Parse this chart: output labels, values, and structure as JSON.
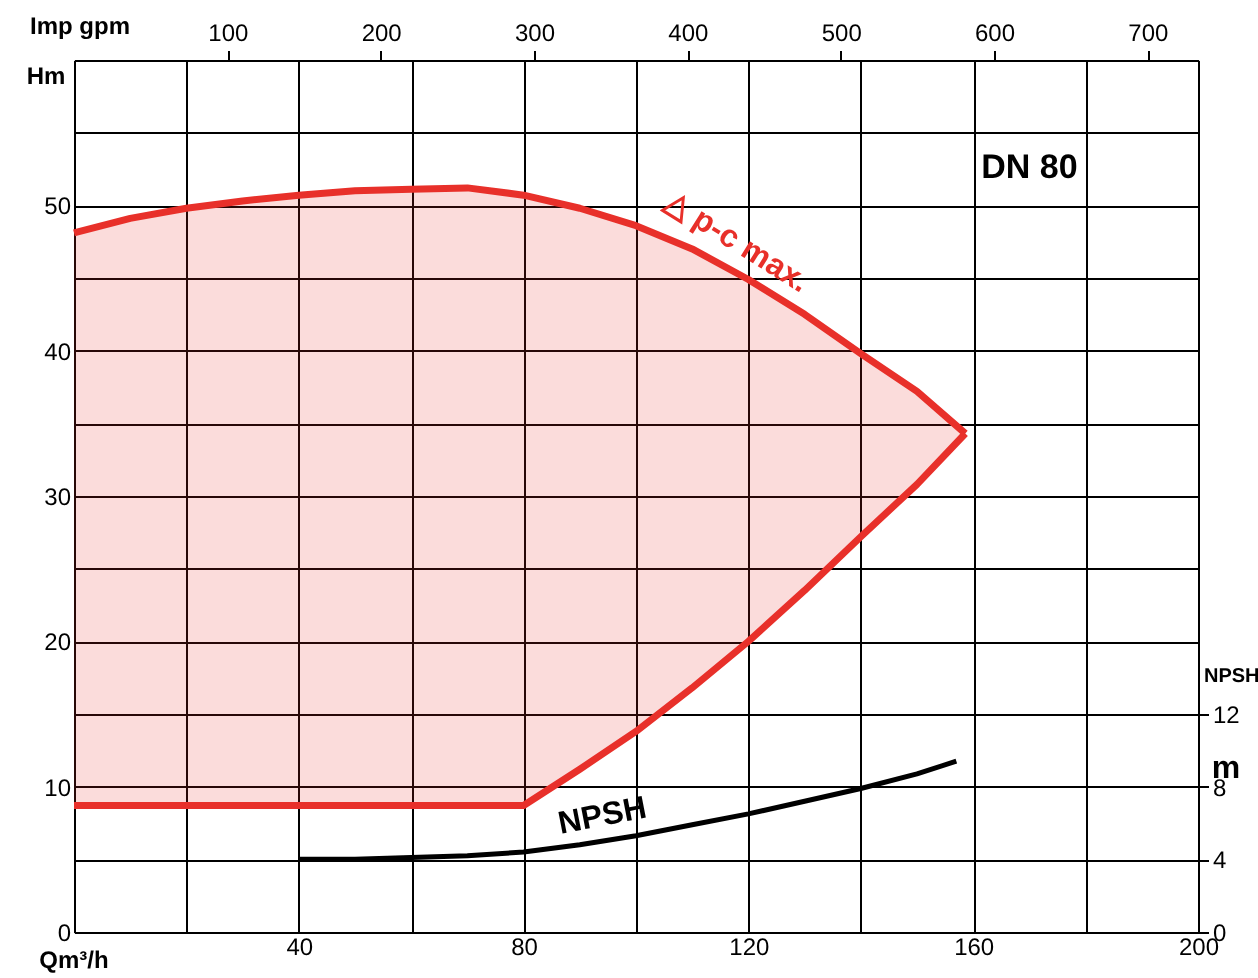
{
  "chart_data": {
    "type": "line",
    "title": "DN 80",
    "xlabel": "Qm³/h",
    "ylabel": "Hm",
    "y2label": "NPSH",
    "x2label": "Imp gpm",
    "xlim": [
      0,
      200
    ],
    "xticks": [
      {
        "value": 0,
        "label": null
      },
      {
        "value": 20,
        "label": null
      },
      40,
      {
        "value": 60,
        "label": null
      },
      80,
      {
        "value": 100,
        "label": null
      },
      120,
      {
        "value": 140,
        "label": null
      },
      160,
      {
        "value": 180,
        "label": null
      },
      200
    ],
    "ylim": [
      0,
      60
    ],
    "yticks": [
      0,
      {
        "value": 5,
        "label": null
      },
      10,
      {
        "value": 15,
        "label": null
      },
      20,
      {
        "value": 25,
        "label": null
      },
      30,
      {
        "value": 35,
        "label": null
      },
      40,
      {
        "value": 45,
        "label": null
      },
      50,
      {
        "value": 55,
        "label": null
      },
      {
        "value": 60,
        "label": null
      }
    ],
    "y2lim": [
      0,
      48
    ],
    "y2ticks": [
      0,
      4,
      8,
      12
    ],
    "x2lim": [
      0,
      733
    ],
    "x2ticks": [
      100,
      200,
      300,
      400,
      500,
      600,
      700
    ],
    "grid": true,
    "series": [
      {
        "color": "#e8302a",
        "x": [
          0,
          10,
          20,
          30,
          40,
          50,
          60,
          70,
          80,
          90,
          100,
          110,
          120,
          130,
          140,
          150,
          158.6
        ],
        "values": [
          48.1,
          49.1,
          49.8,
          50.3,
          50.7,
          51.0,
          51.1,
          51.2,
          50.7,
          49.8,
          48.6,
          47.0,
          44.9,
          42.5,
          39.8,
          37.2,
          34.3
        ],
        "lower": [
          8.7,
          8.7,
          8.7,
          8.7,
          8.7,
          8.7,
          8.7,
          8.7,
          8.7,
          11.2,
          13.8,
          16.8,
          20.0,
          23.5,
          27.2,
          30.8,
          34.3
        ],
        "upper": [
          48.1,
          49.1,
          49.8,
          50.3,
          50.7,
          51.0,
          51.1,
          51.2,
          50.7,
          49.8,
          48.6,
          47.0,
          44.9,
          42.5,
          39.8,
          37.2,
          34.3
        ]
      },
      {
        "color": "#e8302a",
        "x": [
          0,
          10,
          20,
          30,
          40,
          50,
          60,
          70,
          80,
          90,
          100,
          110,
          120,
          130,
          140,
          150,
          158.6
        ],
        "values": [
          8.7,
          8.7,
          8.7,
          8.7,
          8.7,
          8.7,
          8.7,
          8.7,
          8.7,
          11.2,
          13.8,
          16.8,
          20.0,
          23.5,
          27.2,
          30.8,
          34.3
        ]
      },
      {
        "color": "#000000",
        "axis": "y2",
        "x": [
          40,
          50,
          60,
          70,
          80,
          90,
          100,
          110,
          120,
          130,
          140,
          150,
          157
        ],
        "values": [
          4.0,
          4.0,
          4.1,
          4.2,
          4.4,
          4.8,
          5.3,
          5.9,
          6.5,
          7.2,
          7.9,
          8.7,
          9.4
        ]
      }
    ],
    "annotations": [
      "△ p-c max.",
      "NPSH",
      "m"
    ]
  }
}
